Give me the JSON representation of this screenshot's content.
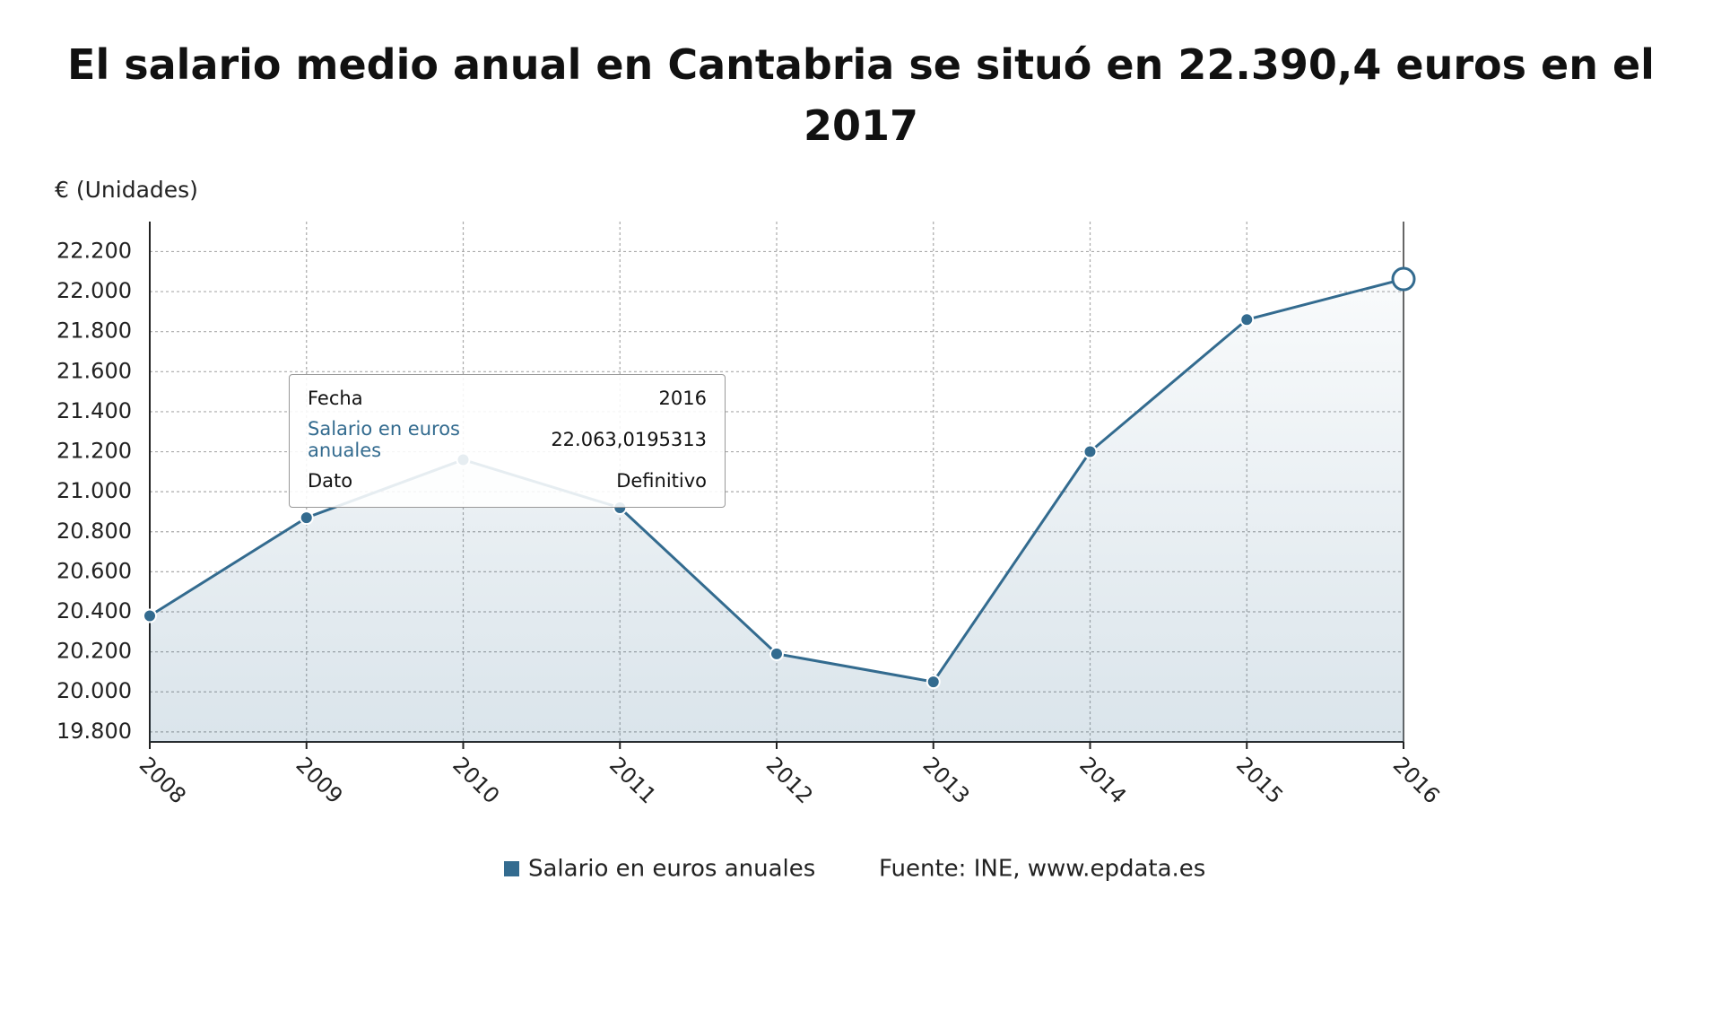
{
  "chart_data": {
    "type": "line",
    "title": "El salario medio anual en Cantabria se situó en 22.390,4 euros en el 2017",
    "y_axis_label": "€ (Unidades)",
    "categories": [
      "2008",
      "2009",
      "2010",
      "2011",
      "2012",
      "2013",
      "2014",
      "2015",
      "2016"
    ],
    "series": [
      {
        "name": "Salario en euros anuales",
        "color": "#336b8f",
        "values": [
          20380,
          20870,
          21160,
          20920,
          20190,
          20050,
          21200,
          21860,
          22063.0195313
        ]
      }
    ],
    "ylim": [
      19750,
      22350
    ],
    "yticks": [
      {
        "value": 19800,
        "label": "19.800"
      },
      {
        "value": 20000,
        "label": "20.000"
      },
      {
        "value": 20200,
        "label": "20.200"
      },
      {
        "value": 20400,
        "label": "20.400"
      },
      {
        "value": 20600,
        "label": "20.600"
      },
      {
        "value": 20800,
        "label": "20.800"
      },
      {
        "value": 21000,
        "label": "21.000"
      },
      {
        "value": 21200,
        "label": "21.200"
      },
      {
        "value": 21400,
        "label": "21.400"
      },
      {
        "value": 21600,
        "label": "21.600"
      },
      {
        "value": 21800,
        "label": "21.800"
      },
      {
        "value": 22000,
        "label": "22.000"
      },
      {
        "value": 22200,
        "label": "22.200"
      }
    ],
    "grid": true,
    "source": "Fuente: INE, www.epdata.es",
    "tooltip": {
      "rows": [
        {
          "label": "Fecha",
          "value": "2016"
        },
        {
          "label": "Salario en euros anuales",
          "value": "22.063,0195313"
        },
        {
          "label": "Dato",
          "value": "Definitivo"
        }
      ]
    }
  }
}
